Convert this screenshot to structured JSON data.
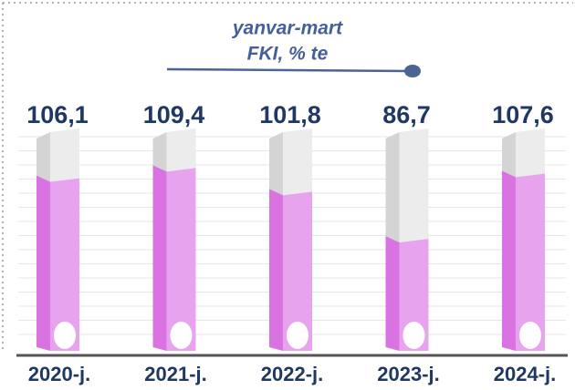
{
  "chart_data": {
    "type": "bar",
    "title": "yanvar-mart",
    "subtitle": "FKI, % te",
    "categories": [
      "2020-j.",
      "2021-j.",
      "2022-j.",
      "2023-j.",
      "2024-j."
    ],
    "values": [
      106.1,
      109.4,
      101.8,
      86.7,
      107.6
    ],
    "value_labels": [
      "106,1",
      "109,4",
      "101,8",
      "86,7",
      "107,6"
    ],
    "color": "#e8a3ef",
    "ylim": [
      50,
      120
    ]
  }
}
